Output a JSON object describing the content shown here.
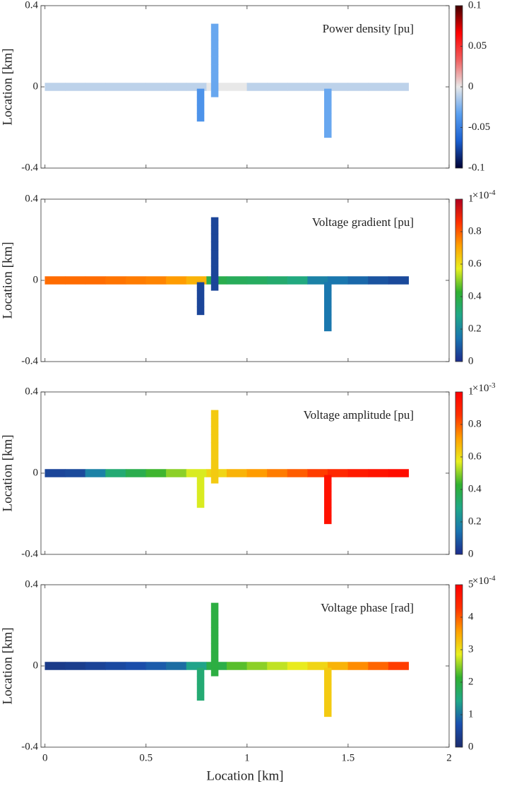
{
  "chart_data": [
    {
      "type": "network",
      "title": "Power density [pu]",
      "ylabel": "Location [km]",
      "show_xticklabels": false,
      "xlim": [
        -0.02,
        2
      ],
      "xticks": [
        0,
        0.5,
        1,
        1.5,
        2
      ],
      "ylim": [
        -0.4,
        0.4
      ],
      "yticks": [
        -0.4,
        0,
        0.4
      ],
      "clim": [
        -0.1,
        0.1
      ],
      "cticks": [
        -0.1,
        -0.05,
        0,
        0.05,
        0.1
      ],
      "colormap": [
        "#000033",
        "#1a5fd0",
        "#5aa0f0",
        "#e8e8e8",
        "#f06060",
        "#ff0000",
        "#400000"
      ],
      "series": [
        {
          "x": [
            0.05,
            0.15,
            0.25,
            0.35,
            0.45,
            0.55,
            0.65,
            0.75,
            0.85,
            0.95,
            1.05,
            1.15,
            1.25,
            1.35,
            1.45,
            1.55,
            1.65,
            1.75
          ],
          "y": [
            0,
            0,
            0,
            0,
            0,
            0,
            0,
            0,
            0,
            0,
            0,
            0,
            0,
            0,
            0,
            0,
            0,
            0
          ],
          "values": [
            -0.01,
            -0.01,
            -0.01,
            -0.01,
            -0.01,
            -0.01,
            -0.01,
            -0.01,
            0,
            0,
            -0.01,
            -0.01,
            -0.01,
            -0.01,
            -0.01,
            -0.01,
            -0.01,
            -0.01
          ]
        },
        {
          "x": [
            0.84,
            0.84,
            0.84,
            0.84,
            0.84,
            0.84,
            0.84,
            0.84,
            0.84
          ],
          "y": [
            -0.03,
            0.01,
            0.05,
            0.09,
            0.13,
            0.17,
            0.21,
            0.25,
            0.29
          ],
          "values": [
            -0.03,
            -0.03,
            -0.03,
            -0.03,
            -0.03,
            -0.03,
            -0.03,
            -0.03,
            -0.03
          ]
        },
        {
          "x": [
            0.77,
            0.77,
            0.77,
            0.77
          ],
          "y": [
            -0.03,
            -0.07,
            -0.11,
            -0.15
          ],
          "values": [
            -0.04,
            -0.04,
            -0.04,
            -0.04
          ]
        },
        {
          "x": [
            1.4,
            1.4,
            1.4,
            1.4,
            1.4,
            1.4
          ],
          "y": [
            -0.03,
            -0.07,
            -0.11,
            -0.15,
            -0.19,
            -0.23
          ],
          "values": [
            -0.03,
            -0.03,
            -0.03,
            -0.03,
            -0.03,
            -0.03
          ]
        }
      ]
    },
    {
      "type": "network",
      "title": "Voltage gradient [pu]",
      "ylabel": "Location [km]",
      "show_xticklabels": false,
      "xlim": [
        -0.02,
        2
      ],
      "xticks": [
        0,
        0.5,
        1,
        1.5,
        2
      ],
      "ylim": [
        -0.4,
        0.4
      ],
      "yticks": [
        -0.4,
        0,
        0.4
      ],
      "clim": [
        0,
        1
      ],
      "cticks": [
        0,
        0.2,
        0.4,
        0.6,
        0.8,
        1
      ],
      "cscale_base": "×10",
      "cscale_exp": "-4",
      "colormap": [
        "#1c2c8c",
        "#1a74b0",
        "#20a888",
        "#30b030",
        "#e8f020",
        "#ffa000",
        "#ff3000",
        "#b00020"
      ],
      "series": [
        {
          "x": [
            0.05,
            0.15,
            0.25,
            0.35,
            0.45,
            0.55,
            0.65,
            0.75,
            0.85,
            0.95,
            1.05,
            1.15,
            1.25,
            1.35,
            1.45,
            1.55,
            1.65,
            1.75
          ],
          "y": [
            0,
            0,
            0,
            0,
            0,
            0,
            0,
            0,
            0,
            0,
            0,
            0,
            0,
            0,
            0,
            0,
            0,
            0
          ],
          "values": [
            0.78,
            0.78,
            0.78,
            0.77,
            0.76,
            0.75,
            0.72,
            0.68,
            0.38,
            0.36,
            0.35,
            0.33,
            0.3,
            0.18,
            0.15,
            0.12,
            0.08,
            0.06
          ]
        },
        {
          "x": [
            0.84,
            0.84,
            0.84,
            0.84,
            0.84,
            0.84,
            0.84,
            0.84,
            0.84
          ],
          "y": [
            -0.03,
            0.01,
            0.05,
            0.09,
            0.13,
            0.17,
            0.21,
            0.25,
            0.29
          ],
          "values": [
            0.05,
            0.05,
            0.05,
            0.05,
            0.05,
            0.05,
            0.05,
            0.05,
            0.05
          ]
        },
        {
          "x": [
            0.77,
            0.77,
            0.77,
            0.77
          ],
          "y": [
            -0.03,
            -0.07,
            -0.11,
            -0.15
          ],
          "values": [
            0.05,
            0.05,
            0.05,
            0.05
          ]
        },
        {
          "x": [
            1.4,
            1.4,
            1.4,
            1.4,
            1.4,
            1.4
          ],
          "y": [
            -0.03,
            -0.07,
            -0.11,
            -0.15,
            -0.19,
            -0.23
          ],
          "values": [
            0.15,
            0.15,
            0.15,
            0.15,
            0.15,
            0.15
          ]
        }
      ]
    },
    {
      "type": "network",
      "title": "Voltage amplitude [pu]",
      "ylabel": "Location [km]",
      "show_xticklabels": false,
      "xlim": [
        -0.02,
        2
      ],
      "xticks": [
        0,
        0.5,
        1,
        1.5,
        2
      ],
      "ylim": [
        -0.4,
        0.4
      ],
      "yticks": [
        -0.4,
        0,
        0.4
      ],
      "clim": [
        0,
        1
      ],
      "cticks": [
        0,
        0.2,
        0.4,
        0.6,
        0.8,
        1
      ],
      "cscale_base": "×10",
      "cscale_exp": "-3",
      "colormap": [
        "#1c2c8c",
        "#1a74b0",
        "#20a888",
        "#30b030",
        "#e8f020",
        "#ffa000",
        "#ff3000",
        "#ff0000"
      ],
      "series": [
        {
          "x": [
            0.05,
            0.15,
            0.25,
            0.35,
            0.45,
            0.55,
            0.65,
            0.75,
            0.85,
            0.95,
            1.05,
            1.15,
            1.25,
            1.35,
            1.45,
            1.55,
            1.65,
            1.75
          ],
          "y": [
            0,
            0,
            0,
            0,
            0,
            0,
            0,
            0,
            0,
            0,
            0,
            0,
            0,
            0,
            0,
            0,
            0,
            0
          ],
          "values": [
            0.05,
            0.06,
            0.18,
            0.32,
            0.38,
            0.44,
            0.5,
            0.56,
            0.62,
            0.68,
            0.72,
            0.76,
            0.8,
            0.84,
            0.88,
            0.92,
            0.94,
            0.96
          ]
        },
        {
          "x": [
            0.84,
            0.84,
            0.84,
            0.84,
            0.84,
            0.84,
            0.84,
            0.84,
            0.84
          ],
          "y": [
            -0.03,
            0.01,
            0.05,
            0.09,
            0.13,
            0.17,
            0.21,
            0.25,
            0.29
          ],
          "values": [
            0.64,
            0.64,
            0.64,
            0.64,
            0.64,
            0.64,
            0.64,
            0.64,
            0.64
          ]
        },
        {
          "x": [
            0.77,
            0.77,
            0.77,
            0.77
          ],
          "y": [
            -0.03,
            -0.07,
            -0.11,
            -0.15
          ],
          "values": [
            0.56,
            0.56,
            0.56,
            0.56
          ]
        },
        {
          "x": [
            1.4,
            1.4,
            1.4,
            1.4,
            1.4,
            1.4
          ],
          "y": [
            -0.03,
            -0.07,
            -0.11,
            -0.15,
            -0.19,
            -0.23
          ],
          "values": [
            0.95,
            0.95,
            0.95,
            0.95,
            0.95,
            0.95
          ]
        }
      ]
    },
    {
      "type": "network",
      "title": "Voltage phase [rad]",
      "ylabel": "Location [km]",
      "xlabel": "Location [km]",
      "show_xticklabels": true,
      "xlim": [
        -0.02,
        2
      ],
      "xticks": [
        0,
        0.5,
        1,
        1.5,
        2
      ],
      "ylim": [
        -0.4,
        0.4
      ],
      "yticks": [
        -0.4,
        0,
        0.4
      ],
      "clim": [
        0,
        5
      ],
      "cticks": [
        0,
        1,
        2,
        3,
        4,
        5
      ],
      "cscale_base": "×10",
      "cscale_exp": "-4",
      "colormap": [
        "#1c2c6c",
        "#1a50b0",
        "#20a888",
        "#30b030",
        "#e8f020",
        "#ffa000",
        "#ff3000",
        "#ff0000"
      ],
      "series": [
        {
          "x": [
            0.05,
            0.15,
            0.25,
            0.35,
            0.45,
            0.55,
            0.65,
            0.75,
            0.85,
            0.95,
            1.05,
            1.15,
            1.25,
            1.35,
            1.45,
            1.55,
            1.65,
            1.75
          ],
          "y": [
            0,
            0,
            0,
            0,
            0,
            0,
            0,
            0,
            0,
            0,
            0,
            0,
            0,
            0,
            0,
            0,
            0,
            0
          ],
          "values": [
            0.3,
            0.35,
            0.45,
            0.55,
            0.65,
            0.8,
            0.95,
            1.4,
            1.95,
            2.3,
            2.5,
            2.7,
            2.9,
            3.1,
            3.4,
            3.7,
            3.95,
            4.2
          ]
        },
        {
          "x": [
            0.84,
            0.84,
            0.84,
            0.84,
            0.84,
            0.84,
            0.84,
            0.84,
            0.84
          ],
          "y": [
            -0.03,
            0.01,
            0.05,
            0.09,
            0.13,
            0.17,
            0.21,
            0.25,
            0.29
          ],
          "values": [
            2,
            2,
            2,
            2,
            2,
            2,
            2,
            2,
            2
          ]
        },
        {
          "x": [
            0.77,
            0.77,
            0.77,
            0.77
          ],
          "y": [
            -0.03,
            -0.07,
            -0.11,
            -0.15
          ],
          "values": [
            1.6,
            1.6,
            1.6,
            1.6
          ]
        },
        {
          "x": [
            1.4,
            1.4,
            1.4,
            1.4,
            1.4,
            1.4
          ],
          "y": [
            -0.03,
            -0.07,
            -0.11,
            -0.15,
            -0.19,
            -0.23
          ],
          "values": [
            3.2,
            3.2,
            3.2,
            3.2,
            3.2,
            3.2
          ]
        }
      ]
    }
  ]
}
